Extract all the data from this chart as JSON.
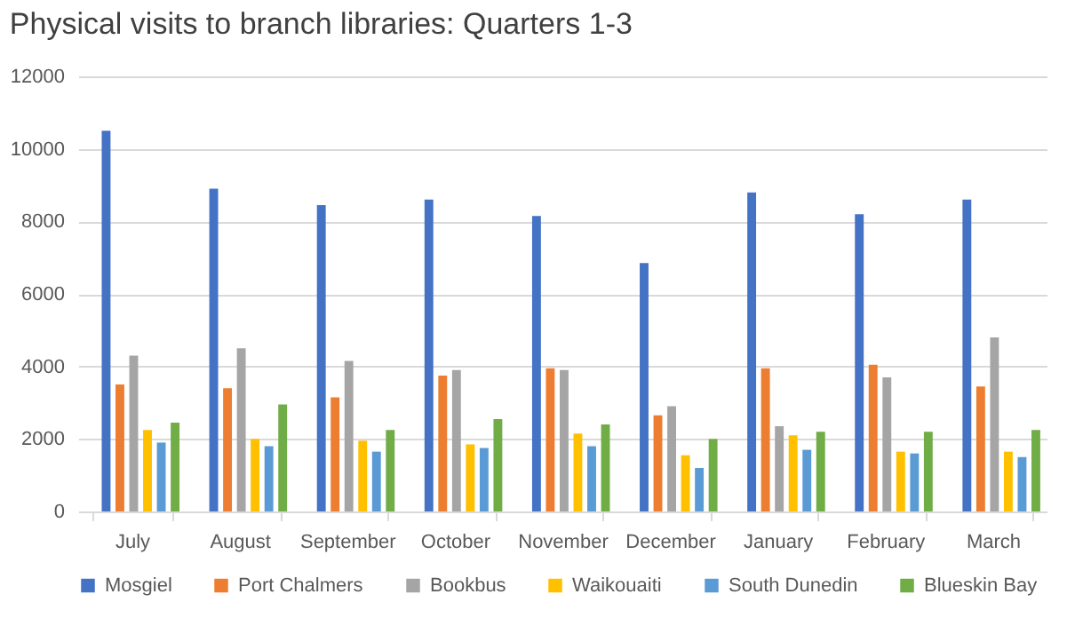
{
  "chart_data": {
    "type": "bar",
    "title": "Physical visits to branch libraries: Quarters 1-3",
    "categories": [
      "July",
      "August",
      "September",
      "October",
      "November",
      "December",
      "January",
      "February",
      "March"
    ],
    "series": [
      {
        "name": "Mosgiel",
        "color": "#4472c4",
        "values": [
          10500,
          8900,
          8450,
          8600,
          8150,
          6850,
          8800,
          8200,
          8600
        ]
      },
      {
        "name": "Port Chalmers",
        "color": "#ed7d31",
        "values": [
          3500,
          3400,
          3150,
          3750,
          3950,
          2650,
          3950,
          4050,
          3450
        ]
      },
      {
        "name": "Bookbus",
        "color": "#a5a5a5",
        "values": [
          4300,
          4500,
          4150,
          3900,
          3900,
          2900,
          2350,
          3700,
          4800
        ]
      },
      {
        "name": "Waikouaiti",
        "color": "#ffc000",
        "values": [
          2250,
          2000,
          1950,
          1850,
          2150,
          1550,
          2100,
          1650,
          1650
        ]
      },
      {
        "name": "South Dunedin",
        "color": "#5b9bd5",
        "values": [
          1900,
          1800,
          1650,
          1750,
          1800,
          1200,
          1700,
          1600,
          1500
        ]
      },
      {
        "name": "Blueskin Bay",
        "color": "#70ad47",
        "values": [
          2450,
          2950,
          2250,
          2550,
          2400,
          2000,
          2200,
          2200,
          2250
        ]
      }
    ],
    "ylim": [
      0,
      12000
    ],
    "yticks": [
      0,
      2000,
      4000,
      6000,
      8000,
      10000,
      12000
    ],
    "grid": "y",
    "legend": "bottom"
  }
}
